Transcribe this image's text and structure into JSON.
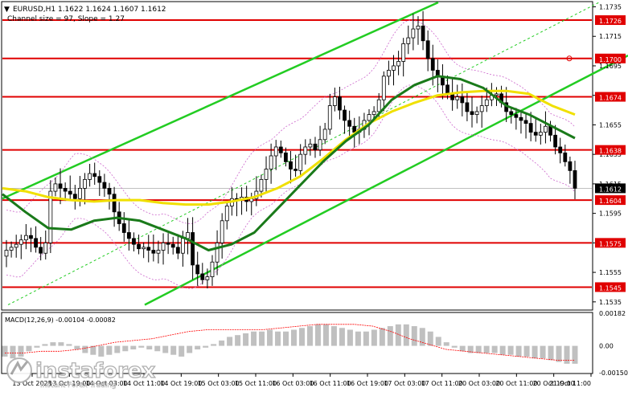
{
  "header": {
    "symbol_line": "EURUSD,H1  1.1622 1.1624 1.1607 1.1612",
    "channel_line": "Channel size = 97, Slope = 1.27"
  },
  "colors": {
    "background": "#ffffff",
    "candle": "#000000",
    "level_line": "#e00000",
    "level_label_bg": "#e00000",
    "level_label_text": "#ffffff",
    "price_label_bg": "#000000",
    "channel": "#22cc22",
    "ma_fast": "#f0e000",
    "ma_slow": "#1a7a1a",
    "envelope": "#cc66cc",
    "macd_hist": "#c0c0c0",
    "macd_signal": "#ff0000"
  },
  "chart_data": {
    "type": "candlestick",
    "symbol": "EURUSD",
    "timeframe": "H1",
    "ohlc": {
      "open": 1.1622,
      "high": 1.1624,
      "low": 1.1607,
      "close": 1.1612
    },
    "y_axis_ticks": [
      "1.1735",
      "1.1715",
      "1.1695",
      "1.1675",
      "1.1655",
      "1.1635",
      "1.1615",
      "1.1595",
      "1.1575",
      "1.1555",
      "1.1535"
    ],
    "ylim": [
      1.153,
      1.1738
    ],
    "x_axis_labels": [
      "13 Oct 2025",
      "13 Oct 19:00",
      "14 Oct 03:00",
      "14 Oct 11:00",
      "14 Oct 19:00",
      "15 Oct 03:00",
      "15 Oct 11:00",
      "16 Oct 03:00",
      "16 Oct 11:00",
      "16 Oct 19:00",
      "17 Oct 03:00",
      "17 Oct 11:00",
      "20 Oct 03:00",
      "20 Oct 11:00",
      "20 Oct 19:00",
      "21 Oct 11:00"
    ],
    "levels": [
      "1.1726",
      "1.1700",
      "1.1674",
      "1.1638",
      "1.1604",
      "1.1575",
      "1.1545"
    ],
    "current_price": "1.1612",
    "price_path": [
      1.157,
      1.1572,
      1.1574,
      1.1577,
      1.158,
      1.1578,
      1.1572,
      1.1568,
      1.1575,
      1.161,
      1.1615,
      1.1612,
      1.161,
      1.1608,
      1.1605,
      1.1612,
      1.1618,
      1.1622,
      1.162,
      1.1616,
      1.1612,
      1.1608,
      1.1596,
      1.1588,
      1.1582,
      1.1578,
      1.1574,
      1.1571,
      1.1572,
      1.157,
      1.1568,
      1.157,
      1.1575,
      1.1574,
      1.1572,
      1.1568,
      1.1578,
      1.1582,
      1.156,
      1.1554,
      1.155,
      1.1552,
      1.1562,
      1.1575,
      1.159,
      1.16,
      1.1605,
      1.1604,
      1.1606,
      1.1603,
      1.1605,
      1.161,
      1.1618,
      1.1625,
      1.1634,
      1.164,
      1.1636,
      1.163,
      1.1625,
      1.1624,
      1.1635,
      1.164,
      1.1642,
      1.1638,
      1.1645,
      1.1652,
      1.1668,
      1.1674,
      1.1665,
      1.1658,
      1.1654,
      1.165,
      1.1652,
      1.1658,
      1.1662,
      1.1664,
      1.1672,
      1.1688,
      1.1692,
      1.1695,
      1.1698,
      1.171,
      1.1714,
      1.172,
      1.1722,
      1.1712,
      1.17,
      1.1692,
      1.1688,
      1.1682,
      1.1676,
      1.1672,
      1.1674,
      1.167,
      1.1664,
      1.1662,
      1.1664,
      1.1668,
      1.1672,
      1.1675,
      1.1676,
      1.167,
      1.1664,
      1.1662,
      1.166,
      1.1658,
      1.1656,
      1.165,
      1.1648,
      1.165,
      1.1654,
      1.1648,
      1.164,
      1.1636,
      1.163,
      1.1624,
      1.1612
    ],
    "ma_fast": [
      1.1612,
      1.161,
      1.1606,
      1.1604,
      1.1603,
      1.1604,
      1.1604,
      1.1602,
      1.1601,
      1.1601,
      1.1603,
      1.1606,
      1.1612,
      1.162,
      1.1632,
      1.1645,
      1.1656,
      1.1664,
      1.167,
      1.1675,
      1.1677,
      1.1678,
      1.1678,
      1.1676,
      1.1668,
      1.1662
    ],
    "ma_slow": [
      1.1608,
      1.1596,
      1.1585,
      1.1584,
      1.159,
      1.1592,
      1.159,
      1.1584,
      1.1578,
      1.157,
      1.1574,
      1.1582,
      1.1598,
      1.1614,
      1.163,
      1.1644,
      1.1655,
      1.1672,
      1.1682,
      1.1688,
      1.1686,
      1.168,
      1.1668,
      1.1662,
      1.1654,
      1.1646
    ],
    "channel_slope_label": "1.27",
    "channel_size_label": "97",
    "macd": {
      "label": "MACD(12,26,9) -0.00104 -0.00082",
      "y_axis_ticks": [
        "0.00182",
        "0.00",
        "-0.00150"
      ],
      "main_value": -0.00104,
      "signal_value": -0.00082,
      "histogram": [
        -0.0006,
        -0.0007,
        -0.0006,
        -0.0003,
        -0.0001,
        0.0001,
        0.0002,
        0.0002,
        0.0001,
        -0.0002,
        -0.0004,
        -0.0005,
        -0.0006,
        -0.0005,
        -0.0004,
        -0.0003,
        -0.0002,
        -0.0001,
        -0.0002,
        -0.0003,
        -0.0004,
        -0.0005,
        -0.0006,
        -0.0004,
        -0.0002,
        -0.0001,
        0.0001,
        0.0003,
        0.0005,
        0.0006,
        0.0007,
        0.0008,
        0.0008,
        0.0009,
        0.0008,
        0.0008,
        0.0009,
        0.001,
        0.0011,
        0.0012,
        0.0012,
        0.0011,
        0.001,
        0.0009,
        0.0008,
        0.0008,
        0.0009,
        0.001,
        0.0011,
        0.0012,
        0.0012,
        0.0011,
        0.001,
        0.0008,
        0.0005,
        0.0002,
        -0.0001,
        -0.0003,
        -0.0004,
        -0.0004,
        -0.0004,
        -0.0004,
        -0.0005,
        -0.0005,
        -0.0006,
        -0.0006,
        -0.0007,
        -0.0007,
        -0.0008,
        -0.0009,
        -0.001,
        -0.001
      ],
      "signal_line": [
        -0.0004,
        -0.0004,
        -0.0003,
        -0.0003,
        -0.0002,
        0.0,
        0.0002,
        0.0003,
        0.0004,
        0.0006,
        0.0008,
        0.0009,
        0.0009,
        0.0009,
        0.0009,
        0.001,
        0.0011,
        0.0012,
        0.0012,
        0.0012,
        0.0011,
        0.0008,
        0.0004,
        0.0001,
        -0.0002,
        -0.0003,
        -0.0004,
        -0.0005,
        -0.0006,
        -0.0007,
        -0.0008,
        -0.0008
      ]
    }
  },
  "watermark": {
    "brand": "instaforex",
    "tagline": "Instant Forex Trading"
  }
}
